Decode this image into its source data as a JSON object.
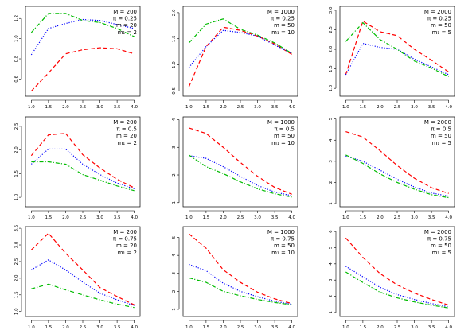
{
  "colors": {
    "red": "#ff0000",
    "blue": "#0000ff",
    "green": "#00bb00"
  },
  "styles": {
    "red": "dashed",
    "blue": "dotted",
    "green": "dash-dot"
  },
  "chart_data": [
    {
      "type": "line",
      "row": 0,
      "col": 0,
      "legend": [
        "M = 200",
        "π = 0.25",
        "m = 20",
        "m₁ = 2"
      ],
      "x": [
        1.0,
        1.5,
        2.0,
        2.5,
        3.0,
        3.5,
        4.0
      ],
      "xticks": [
        1.0,
        1.5,
        2.0,
        2.5,
        3.0,
        3.5,
        4.0
      ],
      "xlim": [
        0.83,
        4.17
      ],
      "ylim": [
        0.43,
        1.32
      ],
      "yticks": [
        0.6,
        0.8,
        1.0,
        1.2
      ],
      "yticklabels": [
        "0.6",
        "0.8",
        "1.0",
        "1.2"
      ],
      "series": [
        {
          "color": "red",
          "values": [
            0.48,
            0.66,
            0.85,
            0.89,
            0.91,
            0.9,
            0.85
          ]
        },
        {
          "color": "blue",
          "values": [
            0.84,
            1.1,
            1.15,
            1.19,
            1.18,
            1.14,
            1.1
          ]
        },
        {
          "color": "green",
          "values": [
            1.06,
            1.25,
            1.25,
            1.18,
            1.16,
            1.1,
            1.02
          ]
        }
      ]
    },
    {
      "type": "line",
      "row": 0,
      "col": 1,
      "legend": [
        "M = 1000",
        "π = 0.25",
        "m = 50",
        "m₁ = 10"
      ],
      "x": [
        1.0,
        1.5,
        2.0,
        2.5,
        3.0,
        3.5,
        4.0
      ],
      "xticks": [
        1.0,
        1.5,
        2.0,
        2.5,
        3.0,
        3.5,
        4.0
      ],
      "xlim": [
        0.83,
        4.17
      ],
      "ylim": [
        0.4,
        2.12
      ],
      "yticks": [
        0.5,
        1.0,
        1.5,
        2.0
      ],
      "yticklabels": [
        "0.5",
        "1.0",
        "1.5",
        "2.0"
      ],
      "series": [
        {
          "color": "red",
          "values": [
            0.58,
            1.35,
            1.72,
            1.66,
            1.55,
            1.4,
            1.2
          ]
        },
        {
          "color": "blue",
          "values": [
            0.95,
            1.35,
            1.66,
            1.62,
            1.55,
            1.38,
            1.22
          ]
        },
        {
          "color": "green",
          "values": [
            1.42,
            1.78,
            1.88,
            1.68,
            1.57,
            1.42,
            1.22
          ]
        }
      ]
    },
    {
      "type": "line",
      "row": 0,
      "col": 2,
      "legend": [
        "M = 2000",
        "π = 0.25",
        "m = 50",
        "m₁ = 5"
      ],
      "x": [
        1.0,
        1.5,
        2.0,
        2.5,
        3.0,
        3.5,
        4.0
      ],
      "xticks": [
        1.0,
        1.5,
        2.0,
        2.5,
        3.0,
        3.5,
        4.0
      ],
      "xlim": [
        0.83,
        4.17
      ],
      "ylim": [
        0.8,
        3.1
      ],
      "yticks": [
        1.0,
        1.5,
        2.0,
        2.5,
        3.0
      ],
      "yticklabels": [
        "1.0",
        "1.5",
        "2.0",
        "2.5",
        "3.0"
      ],
      "series": [
        {
          "color": "red",
          "values": [
            1.35,
            2.72,
            2.45,
            2.35,
            2.0,
            1.72,
            1.42
          ]
        },
        {
          "color": "blue",
          "values": [
            1.35,
            2.15,
            2.05,
            2.0,
            1.75,
            1.55,
            1.35
          ]
        },
        {
          "color": "green",
          "values": [
            2.2,
            2.68,
            2.25,
            2.0,
            1.7,
            1.52,
            1.3
          ]
        }
      ]
    },
    {
      "type": "line",
      "row": 1,
      "col": 0,
      "legend": [
        "M = 200",
        "π = 0.5",
        "m = 20",
        "m₁ = 2"
      ],
      "x": [
        1.0,
        1.5,
        2.0,
        2.5,
        3.0,
        3.5,
        4.0
      ],
      "xticks": [
        1.0,
        1.5,
        2.0,
        2.5,
        3.0,
        3.5,
        4.0
      ],
      "xlim": [
        0.83,
        4.17
      ],
      "ylim": [
        0.8,
        2.7
      ],
      "yticks": [
        1.0,
        1.5,
        2.0,
        2.5
      ],
      "yticklabels": [
        "1.0",
        "1.5",
        "2.0",
        "2.5"
      ],
      "series": [
        {
          "color": "red",
          "values": [
            1.88,
            2.32,
            2.35,
            1.9,
            1.62,
            1.38,
            1.2
          ]
        },
        {
          "color": "blue",
          "values": [
            1.7,
            2.02,
            2.02,
            1.7,
            1.48,
            1.3,
            1.18
          ]
        },
        {
          "color": "green",
          "values": [
            1.75,
            1.75,
            1.7,
            1.48,
            1.36,
            1.24,
            1.14
          ]
        }
      ]
    },
    {
      "type": "line",
      "row": 1,
      "col": 1,
      "legend": [
        "M = 1000",
        "π = 0.5",
        "m = 50",
        "m₁ = 10"
      ],
      "x": [
        1.0,
        1.5,
        2.0,
        2.5,
        3.0,
        3.5,
        4.0
      ],
      "xticks": [
        1.0,
        1.5,
        2.0,
        2.5,
        3.0,
        3.5,
        4.0
      ],
      "xlim": [
        0.83,
        4.17
      ],
      "ylim": [
        0.85,
        4.1
      ],
      "yticks": [
        1,
        2,
        3,
        4
      ],
      "yticklabels": [
        "1",
        "2",
        "3",
        "4"
      ],
      "series": [
        {
          "color": "red",
          "values": [
            3.7,
            3.5,
            3.0,
            2.45,
            1.95,
            1.55,
            1.3
          ]
        },
        {
          "color": "blue",
          "values": [
            2.7,
            2.6,
            2.3,
            1.95,
            1.62,
            1.38,
            1.25
          ]
        },
        {
          "color": "green",
          "values": [
            2.72,
            2.3,
            2.05,
            1.75,
            1.5,
            1.32,
            1.2
          ]
        }
      ]
    },
    {
      "type": "line",
      "row": 1,
      "col": 2,
      "legend": [
        "M = 2000",
        "π = 0.5",
        "m = 50",
        "m₁ = 5"
      ],
      "x": [
        1.0,
        1.5,
        2.0,
        2.5,
        3.0,
        3.5,
        4.0
      ],
      "xticks": [
        1.0,
        1.5,
        2.0,
        2.5,
        3.0,
        3.5,
        4.0
      ],
      "xlim": [
        0.83,
        4.17
      ],
      "ylim": [
        0.85,
        5.1
      ],
      "yticks": [
        1,
        2,
        3,
        4,
        5
      ],
      "yticklabels": [
        "1",
        "2",
        "3",
        "4",
        "5"
      ],
      "series": [
        {
          "color": "red",
          "values": [
            4.4,
            4.15,
            3.5,
            2.8,
            2.2,
            1.75,
            1.48
          ]
        },
        {
          "color": "blue",
          "values": [
            3.25,
            3.0,
            2.58,
            2.15,
            1.78,
            1.5,
            1.35
          ]
        },
        {
          "color": "green",
          "values": [
            3.3,
            2.9,
            2.4,
            2.0,
            1.68,
            1.42,
            1.28
          ]
        }
      ]
    },
    {
      "type": "line",
      "row": 2,
      "col": 0,
      "legend": [
        "M = 200",
        "π = 0.75",
        "m = 20",
        "m₁ = 2"
      ],
      "x": [
        1.0,
        1.5,
        2.0,
        2.5,
        3.0,
        3.5,
        4.0
      ],
      "xticks": [
        1.0,
        1.5,
        2.0,
        2.5,
        3.0,
        3.5,
        4.0
      ],
      "xlim": [
        0.83,
        4.17
      ],
      "ylim": [
        0.85,
        3.55
      ],
      "yticks": [
        1.0,
        1.5,
        2.0,
        2.5,
        3.0,
        3.5
      ],
      "yticklabels": [
        "1.0",
        "1.5",
        "2.0",
        "2.5",
        "3.0",
        "3.5"
      ],
      "series": [
        {
          "color": "red",
          "values": [
            2.85,
            3.35,
            2.75,
            2.25,
            1.72,
            1.45,
            1.2
          ]
        },
        {
          "color": "blue",
          "values": [
            2.25,
            2.55,
            2.25,
            1.88,
            1.55,
            1.35,
            1.18
          ]
        },
        {
          "color": "green",
          "values": [
            1.68,
            1.82,
            1.65,
            1.5,
            1.35,
            1.22,
            1.12
          ]
        }
      ]
    },
    {
      "type": "line",
      "row": 2,
      "col": 1,
      "legend": [
        "M = 1000",
        "π = 0.75",
        "m = 50",
        "m₁ = 10"
      ],
      "x": [
        1.0,
        1.5,
        2.0,
        2.5,
        3.0,
        3.5,
        4.0
      ],
      "xticks": [
        1.0,
        1.5,
        2.0,
        2.5,
        3.0,
        3.5,
        4.0
      ],
      "xlim": [
        0.83,
        4.17
      ],
      "ylim": [
        0.6,
        5.6
      ],
      "yticks": [
        1,
        2,
        3,
        4,
        5
      ],
      "yticklabels": [
        "1",
        "2",
        "3",
        "4",
        "5"
      ],
      "series": [
        {
          "color": "red",
          "values": [
            5.2,
            4.4,
            3.2,
            2.5,
            1.95,
            1.58,
            1.32
          ]
        },
        {
          "color": "blue",
          "values": [
            3.5,
            3.15,
            2.45,
            2.0,
            1.7,
            1.45,
            1.28
          ]
        },
        {
          "color": "green",
          "values": [
            2.75,
            2.5,
            2.0,
            1.75,
            1.55,
            1.38,
            1.25
          ]
        }
      ]
    },
    {
      "type": "line",
      "row": 2,
      "col": 2,
      "legend": [
        "M = 2000",
        "π = 0.75",
        "m = 50",
        "m₁ = 5"
      ],
      "x": [
        1.0,
        1.5,
        2.0,
        2.5,
        3.0,
        3.5,
        4.0
      ],
      "xticks": [
        1.0,
        1.5,
        2.0,
        2.5,
        3.0,
        3.5,
        4.0
      ],
      "xlim": [
        0.83,
        4.17
      ],
      "ylim": [
        0.75,
        6.3
      ],
      "yticks": [
        1,
        2,
        3,
        4,
        5,
        6
      ],
      "yticklabels": [
        "1",
        "2",
        "3",
        "4",
        "5",
        "6"
      ],
      "series": [
        {
          "color": "red",
          "values": [
            5.6,
            4.4,
            3.4,
            2.7,
            2.2,
            1.8,
            1.45
          ]
        },
        {
          "color": "blue",
          "values": [
            3.85,
            3.2,
            2.55,
            2.1,
            1.8,
            1.55,
            1.35
          ]
        },
        {
          "color": "green",
          "values": [
            3.5,
            2.85,
            2.25,
            1.9,
            1.65,
            1.45,
            1.28
          ]
        }
      ]
    }
  ]
}
